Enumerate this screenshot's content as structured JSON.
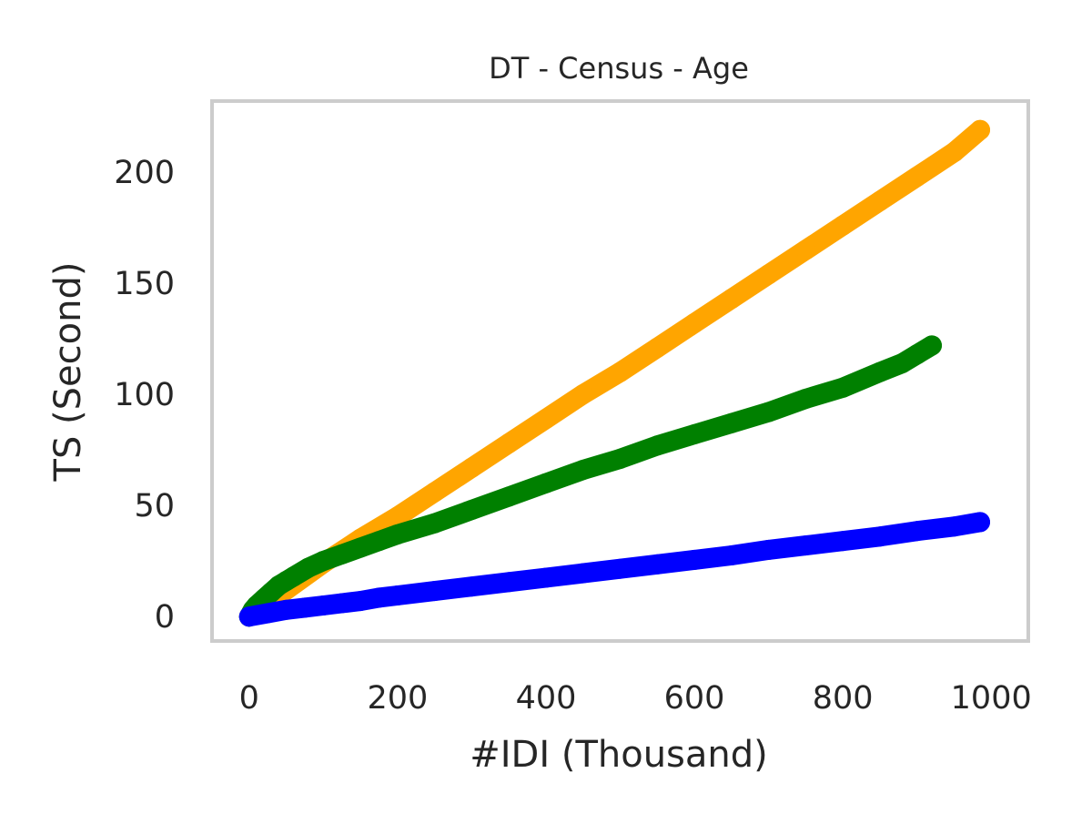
{
  "chart_data": {
    "type": "scatter",
    "title": "DT - Census - Age",
    "xlabel": "#IDI (Thousand)",
    "ylabel": "TS (Second)",
    "xlim": [
      -50,
      1050
    ],
    "ylim": [
      -11,
      232
    ],
    "xticks": [
      0,
      200,
      400,
      600,
      800,
      1000
    ],
    "yticks": [
      0,
      50,
      100,
      150,
      200
    ],
    "grid": false,
    "legend": null,
    "series": [
      {
        "color": "#FFA500",
        "x": [
          0,
          50,
          100,
          150,
          200,
          250,
          300,
          350,
          400,
          450,
          500,
          550,
          600,
          650,
          700,
          750,
          800,
          850,
          900,
          950,
          985
        ],
        "y": [
          0,
          12,
          24,
          35,
          45,
          56,
          67,
          78,
          89,
          100,
          110,
          121,
          132,
          143,
          154,
          165,
          176,
          187,
          198,
          209,
          219
        ]
      },
      {
        "color": "#008000",
        "x": [
          0,
          5,
          10,
          20,
          30,
          40,
          50,
          60,
          80,
          100,
          125,
          150,
          175,
          200,
          250,
          300,
          350,
          400,
          450,
          500,
          550,
          600,
          650,
          700,
          750,
          800,
          850,
          880,
          900,
          920
        ],
        "y": [
          0,
          3,
          5,
          8,
          11,
          14,
          16,
          18,
          22,
          25,
          28,
          31,
          34,
          37,
          42,
          48,
          54,
          60,
          66,
          71,
          77,
          82,
          87,
          92,
          98,
          103,
          110,
          114,
          118,
          122
        ]
      },
      {
        "color": "#0000FF",
        "x": [
          0,
          25,
          50,
          75,
          100,
          125,
          150,
          175,
          200,
          250,
          300,
          350,
          400,
          450,
          500,
          550,
          600,
          650,
          700,
          750,
          800,
          850,
          900,
          950,
          985
        ],
        "y": [
          0,
          1.5,
          3,
          4,
          5,
          6,
          7,
          8.5,
          9.5,
          11.5,
          13.5,
          15.5,
          17.5,
          19.5,
          21.5,
          23.5,
          25.5,
          27.5,
          30,
          32,
          34,
          36,
          38.5,
          40.5,
          42.5
        ]
      }
    ]
  }
}
